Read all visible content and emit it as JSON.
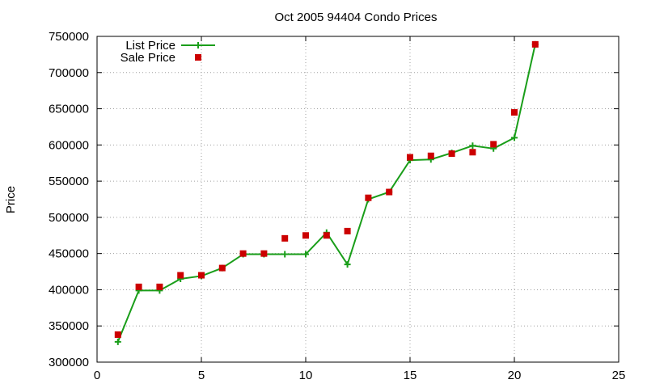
{
  "chart_data": {
    "type": "line",
    "title": "Oct 2005 94404 Condo Prices",
    "xlabel": "",
    "ylabel": "Price",
    "xlim": [
      0,
      25
    ],
    "ylim": [
      300000,
      750000
    ],
    "xticks": [
      0,
      5,
      10,
      15,
      20,
      25
    ],
    "yticks": [
      300000,
      350000,
      400000,
      450000,
      500000,
      550000,
      600000,
      650000,
      700000,
      750000
    ],
    "grid": true,
    "legend_position": "top-left",
    "series": [
      {
        "name": "List Price",
        "style": "line+cross",
        "color": "#1a9e1a",
        "x": [
          1,
          2,
          3,
          4,
          5,
          6,
          7,
          8,
          9,
          10,
          11,
          12,
          13,
          14,
          15,
          16,
          17,
          18,
          19,
          20,
          21
        ],
        "y": [
          328000,
          399000,
          399000,
          415000,
          419000,
          430000,
          449000,
          449000,
          449000,
          449000,
          479000,
          435000,
          525000,
          535000,
          579000,
          580000,
          589000,
          599000,
          595000,
          610000,
          739000
        ]
      },
      {
        "name": "Sale Price",
        "style": "square",
        "color": "#cc0000",
        "x": [
          1,
          2,
          3,
          4,
          5,
          6,
          7,
          8,
          9,
          10,
          11,
          12,
          13,
          14,
          15,
          16,
          17,
          18,
          19,
          20,
          21
        ],
        "y": [
          338000,
          404000,
          404000,
          420000,
          420000,
          430000,
          450000,
          450000,
          471000,
          475000,
          475000,
          481000,
          527000,
          535000,
          583000,
          585000,
          588000,
          590000,
          601000,
          645000,
          739000
        ]
      }
    ]
  }
}
